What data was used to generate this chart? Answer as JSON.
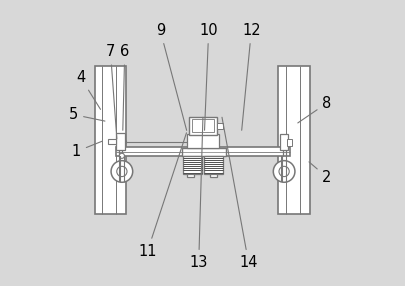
{
  "bg_color": "#d8d8d8",
  "line_color": "#777777",
  "dark_color": "#444444",
  "figsize": [
    4.06,
    2.86
  ],
  "dpi": 100,
  "labels_data": {
    "1": [
      0.055,
      0.47,
      0.155,
      0.51
    ],
    "2": [
      0.935,
      0.38,
      0.865,
      0.44
    ],
    "4": [
      0.07,
      0.73,
      0.145,
      0.61
    ],
    "5": [
      0.045,
      0.6,
      0.165,
      0.575
    ],
    "6": [
      0.225,
      0.82,
      0.218,
      0.535
    ],
    "7": [
      0.175,
      0.82,
      0.198,
      0.505
    ],
    "8": [
      0.935,
      0.64,
      0.825,
      0.565
    ],
    "9": [
      0.35,
      0.895,
      0.445,
      0.535
    ],
    "10": [
      0.52,
      0.895,
      0.505,
      0.535
    ],
    "11": [
      0.305,
      0.12,
      0.445,
      0.545
    ],
    "12": [
      0.67,
      0.895,
      0.635,
      0.535
    ],
    "13": [
      0.485,
      0.08,
      0.5,
      0.6
    ],
    "14": [
      0.66,
      0.08,
      0.565,
      0.6
    ]
  }
}
